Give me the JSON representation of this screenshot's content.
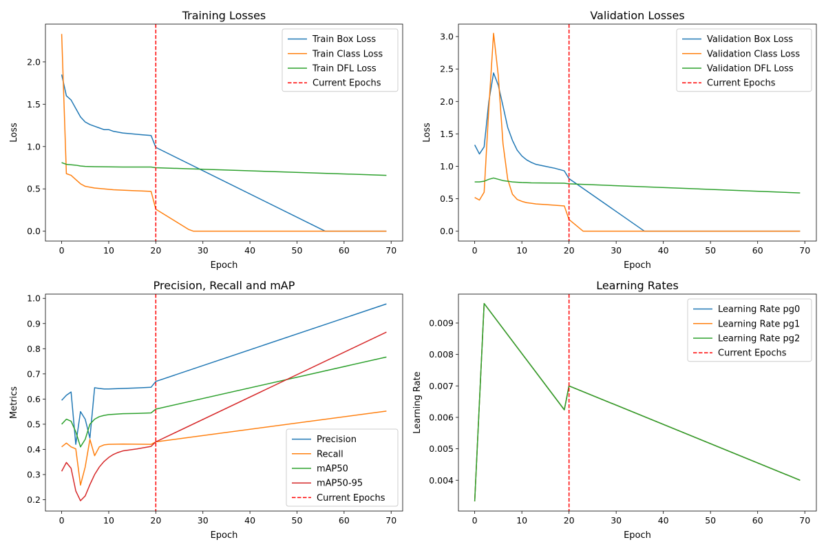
{
  "figure": {
    "background": "#ffffff"
  },
  "chart_data": [
    {
      "id": "training-losses",
      "type": "line",
      "title": "Training Losses",
      "xlabel": "Epoch",
      "ylabel": "Loss",
      "xlim": [
        -3.45,
        72.45
      ],
      "ylim": [
        -0.1165,
        2.4465
      ],
      "xticks": [
        0,
        10,
        20,
        30,
        40,
        50,
        60,
        70
      ],
      "yticks": [
        0.0,
        0.5,
        1.0,
        1.5,
        2.0
      ],
      "ytick_labels": [
        "0.0",
        "0.5",
        "1.0",
        "1.5",
        "2.0"
      ],
      "grid": false,
      "legend": "top-right",
      "series": [
        {
          "name": "Train Box Loss",
          "color": "#1f77b4",
          "points": [
            [
              0,
              1.85
            ],
            [
              1,
              1.6
            ],
            [
              2,
              1.55
            ],
            [
              3,
              1.45
            ],
            [
              4,
              1.35
            ],
            [
              5,
              1.29
            ],
            [
              6,
              1.26
            ],
            [
              7,
              1.24
            ],
            [
              8,
              1.22
            ],
            [
              9,
              1.2
            ],
            [
              10,
              1.2
            ],
            [
              11,
              1.18
            ],
            [
              12,
              1.17
            ],
            [
              13,
              1.16
            ],
            [
              15,
              1.15
            ],
            [
              17,
              1.14
            ],
            [
              19,
              1.13
            ],
            [
              20,
              0.99
            ],
            [
              56,
              0.0
            ],
            [
              69,
              0.0
            ]
          ]
        },
        {
          "name": "Train Class Loss",
          "color": "#ff7f0e",
          "points": [
            [
              0,
              2.33
            ],
            [
              1,
              0.68
            ],
            [
              2,
              0.66
            ],
            [
              3,
              0.61
            ],
            [
              4,
              0.56
            ],
            [
              5,
              0.53
            ],
            [
              6,
              0.52
            ],
            [
              7,
              0.51
            ],
            [
              8,
              0.505
            ],
            [
              9,
              0.5
            ],
            [
              10,
              0.495
            ],
            [
              11,
              0.49
            ],
            [
              13,
              0.485
            ],
            [
              15,
              0.48
            ],
            [
              17,
              0.475
            ],
            [
              19,
              0.47
            ],
            [
              20,
              0.26
            ],
            [
              27,
              0.02
            ],
            [
              28,
              0.0
            ],
            [
              69,
              0.0
            ]
          ]
        },
        {
          "name": "Train DFL Loss",
          "color": "#2ca02c",
          "points": [
            [
              0,
              0.81
            ],
            [
              1,
              0.79
            ],
            [
              2,
              0.785
            ],
            [
              3,
              0.78
            ],
            [
              4,
              0.77
            ],
            [
              5,
              0.765
            ],
            [
              7,
              0.762
            ],
            [
              10,
              0.76
            ],
            [
              13,
              0.758
            ],
            [
              19,
              0.758
            ],
            [
              20,
              0.75
            ],
            [
              69,
              0.66
            ]
          ]
        }
      ],
      "vline": {
        "x": 20,
        "name": "Current Epochs",
        "color": "#ff0000"
      }
    },
    {
      "id": "validation-losses",
      "type": "line",
      "title": "Validation Losses",
      "xlabel": "Epoch",
      "ylabel": "Loss",
      "xlim": [
        -3.45,
        72.45
      ],
      "ylim": [
        -0.152,
        3.192
      ],
      "xticks": [
        0,
        10,
        20,
        30,
        40,
        50,
        60,
        70
      ],
      "yticks": [
        0.0,
        0.5,
        1.0,
        1.5,
        2.0,
        2.5,
        3.0
      ],
      "ytick_labels": [
        "0.0",
        "0.5",
        "1.0",
        "1.5",
        "2.0",
        "2.5",
        "3.0"
      ],
      "grid": false,
      "legend": "top-right",
      "series": [
        {
          "name": "Validation Box Loss",
          "color": "#1f77b4",
          "points": [
            [
              0,
              1.33
            ],
            [
              1,
              1.19
            ],
            [
              2,
              1.3
            ],
            [
              3,
              2.0
            ],
            [
              4,
              2.44
            ],
            [
              5,
              2.25
            ],
            [
              6,
              1.93
            ],
            [
              7,
              1.6
            ],
            [
              8,
              1.4
            ],
            [
              9,
              1.25
            ],
            [
              10,
              1.16
            ],
            [
              11,
              1.1
            ],
            [
              12,
              1.06
            ],
            [
              13,
              1.03
            ],
            [
              15,
              1.0
            ],
            [
              17,
              0.97
            ],
            [
              19,
              0.93
            ],
            [
              20,
              0.81
            ],
            [
              36,
              0.0
            ],
            [
              69,
              0.0
            ]
          ]
        },
        {
          "name": "Validation Class Loss",
          "color": "#ff7f0e",
          "points": [
            [
              0,
              0.52
            ],
            [
              1,
              0.48
            ],
            [
              2,
              0.6
            ],
            [
              3,
              1.9
            ],
            [
              4,
              3.05
            ],
            [
              5,
              2.4
            ],
            [
              6,
              1.35
            ],
            [
              7,
              0.8
            ],
            [
              8,
              0.57
            ],
            [
              9,
              0.49
            ],
            [
              10,
              0.46
            ],
            [
              11,
              0.44
            ],
            [
              12,
              0.43
            ],
            [
              13,
              0.42
            ],
            [
              15,
              0.41
            ],
            [
              17,
              0.4
            ],
            [
              19,
              0.39
            ],
            [
              20,
              0.18
            ],
            [
              23,
              0.0
            ],
            [
              69,
              0.0
            ]
          ]
        },
        {
          "name": "Validation DFL Loss",
          "color": "#2ca02c",
          "points": [
            [
              0,
              0.76
            ],
            [
              1,
              0.76
            ],
            [
              2,
              0.77
            ],
            [
              3,
              0.8
            ],
            [
              4,
              0.82
            ],
            [
              5,
              0.8
            ],
            [
              6,
              0.78
            ],
            [
              7,
              0.77
            ],
            [
              8,
              0.76
            ],
            [
              10,
              0.75
            ],
            [
              12,
              0.745
            ],
            [
              19,
              0.74
            ],
            [
              20,
              0.73
            ],
            [
              69,
              0.59
            ]
          ]
        }
      ],
      "vline": {
        "x": 20,
        "name": "Current Epochs",
        "color": "#ff0000"
      }
    },
    {
      "id": "precision-recall-map",
      "type": "line",
      "title": "Precision, Recall and mAP",
      "xlabel": "Epoch",
      "ylabel": "Metrics",
      "xlim": [
        -3.45,
        72.45
      ],
      "ylim": [
        0.155,
        1.017
      ],
      "xticks": [
        0,
        10,
        20,
        30,
        40,
        50,
        60,
        70
      ],
      "yticks": [
        0.2,
        0.3,
        0.4,
        0.5,
        0.6,
        0.7,
        0.8,
        0.9,
        1.0
      ],
      "ytick_labels": [
        "0.2",
        "0.3",
        "0.4",
        "0.5",
        "0.6",
        "0.7",
        "0.8",
        "0.9",
        "1.0"
      ],
      "grid": false,
      "legend": "bottom-right",
      "series": [
        {
          "name": "Precision",
          "color": "#1f77b4",
          "points": [
            [
              0,
              0.595
            ],
            [
              1,
              0.615
            ],
            [
              2,
              0.628
            ],
            [
              3,
              0.42
            ],
            [
              4,
              0.55
            ],
            [
              5,
              0.52
            ],
            [
              6,
              0.445
            ],
            [
              7,
              0.645
            ],
            [
              8,
              0.642
            ],
            [
              9,
              0.64
            ],
            [
              10,
              0.64
            ],
            [
              13,
              0.642
            ],
            [
              16,
              0.644
            ],
            [
              19,
              0.647
            ],
            [
              20,
              0.67
            ],
            [
              69,
              0.978
            ]
          ]
        },
        {
          "name": "Recall",
          "color": "#ff7f0e",
          "points": [
            [
              0,
              0.41
            ],
            [
              1,
              0.425
            ],
            [
              2,
              0.41
            ],
            [
              3,
              0.402
            ],
            [
              4,
              0.258
            ],
            [
              5,
              0.33
            ],
            [
              6,
              0.44
            ],
            [
              7,
              0.375
            ],
            [
              8,
              0.41
            ],
            [
              9,
              0.418
            ],
            [
              10,
              0.42
            ],
            [
              13,
              0.421
            ],
            [
              19,
              0.42
            ],
            [
              20,
              0.43
            ],
            [
              69,
              0.552
            ]
          ]
        },
        {
          "name": "mAP50",
          "color": "#2ca02c",
          "points": [
            [
              0,
              0.5
            ],
            [
              1,
              0.52
            ],
            [
              2,
              0.512
            ],
            [
              3,
              0.47
            ],
            [
              4,
              0.41
            ],
            [
              5,
              0.44
            ],
            [
              6,
              0.5
            ],
            [
              7,
              0.52
            ],
            [
              8,
              0.53
            ],
            [
              9,
              0.535
            ],
            [
              10,
              0.538
            ],
            [
              13,
              0.542
            ],
            [
              16,
              0.543
            ],
            [
              19,
              0.545
            ],
            [
              20,
              0.56
            ],
            [
              69,
              0.767
            ]
          ]
        },
        {
          "name": "mAP50-95",
          "color": "#d62728",
          "points": [
            [
              0,
              0.313
            ],
            [
              1,
              0.348
            ],
            [
              2,
              0.325
            ],
            [
              3,
              0.235
            ],
            [
              4,
              0.196
            ],
            [
              5,
              0.215
            ],
            [
              6,
              0.26
            ],
            [
              7,
              0.3
            ],
            [
              8,
              0.33
            ],
            [
              9,
              0.352
            ],
            [
              10,
              0.368
            ],
            [
              11,
              0.38
            ],
            [
              12,
              0.388
            ],
            [
              13,
              0.394
            ],
            [
              16,
              0.402
            ],
            [
              19,
              0.412
            ],
            [
              20,
              0.43
            ],
            [
              69,
              0.866
            ]
          ]
        }
      ],
      "vline": {
        "x": 20,
        "name": "Current Epochs",
        "color": "#ff0000"
      }
    },
    {
      "id": "learning-rates",
      "type": "line",
      "title": "Learning Rates",
      "xlabel": "Epoch",
      "ylabel": "Learning Rate",
      "xlim": [
        -3.45,
        72.45
      ],
      "ylim": [
        0.00302,
        0.00992
      ],
      "xticks": [
        0,
        10,
        20,
        30,
        40,
        50,
        60,
        70
      ],
      "yticks": [
        0.004,
        0.005,
        0.006,
        0.007,
        0.008,
        0.009
      ],
      "ytick_labels": [
        "0.004",
        "0.005",
        "0.006",
        "0.007",
        "0.008",
        "0.009"
      ],
      "grid": false,
      "legend": "top-right",
      "series": [
        {
          "name": "Learning Rate pg0",
          "color": "#1f77b4",
          "points": [
            [
              0,
              0.00333
            ],
            [
              2,
              0.00962
            ],
            [
              19,
              0.00624
            ],
            [
              20,
              0.007
            ],
            [
              69,
              0.004
            ]
          ]
        },
        {
          "name": "Learning Rate pg1",
          "color": "#ff7f0e",
          "points": [
            [
              0,
              0.00333
            ],
            [
              2,
              0.00962
            ],
            [
              19,
              0.00624
            ],
            [
              20,
              0.007
            ],
            [
              69,
              0.004
            ]
          ]
        },
        {
          "name": "Learning Rate pg2",
          "color": "#2ca02c",
          "points": [
            [
              0,
              0.00333
            ],
            [
              2,
              0.00962
            ],
            [
              19,
              0.00624
            ],
            [
              20,
              0.007
            ],
            [
              69,
              0.004
            ]
          ]
        }
      ],
      "vline": {
        "x": 20,
        "name": "Current Epochs",
        "color": "#ff0000"
      }
    }
  ]
}
